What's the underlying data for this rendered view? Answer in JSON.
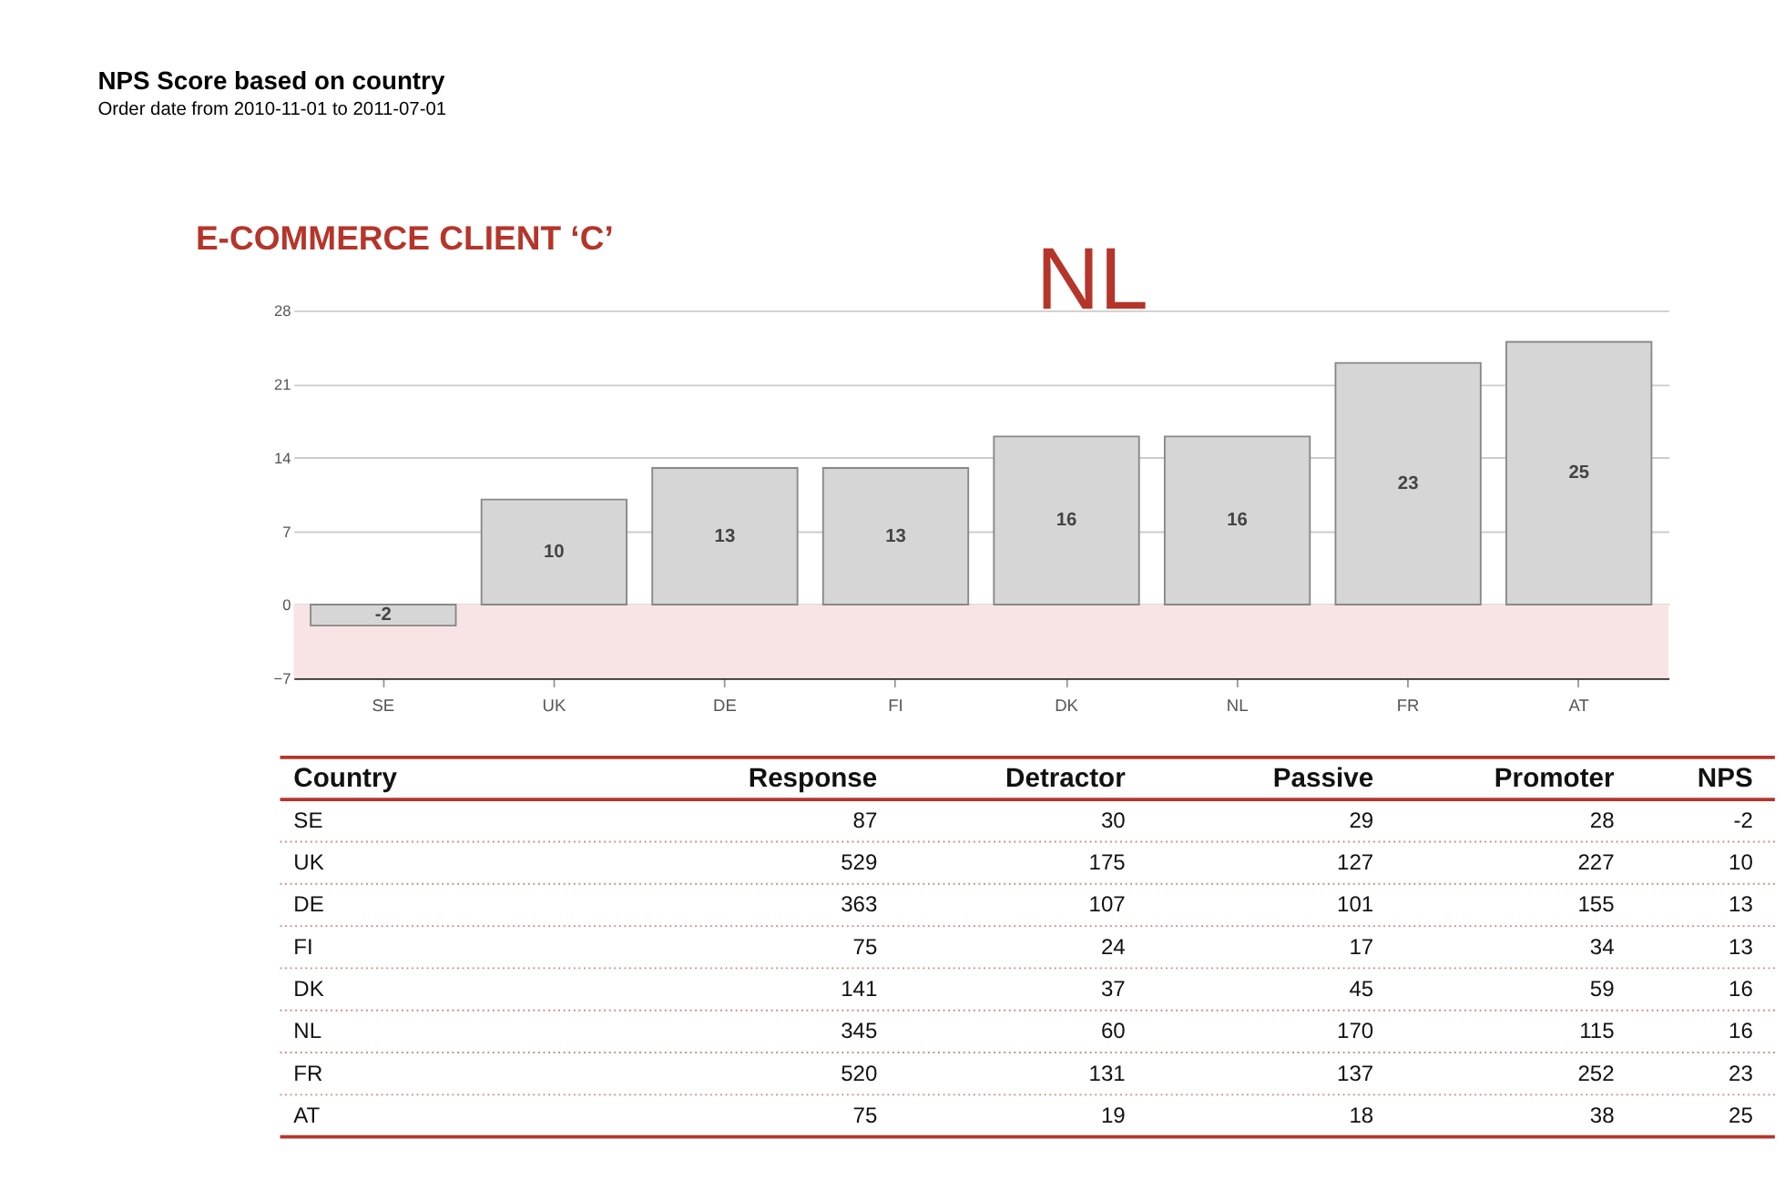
{
  "chart_data": [
    {
      "type": "bar",
      "title": "NPS Score based on country",
      "subtitle": "Order date from 2010-11-01 to 2011-07-01",
      "categories": [
        "SE",
        "UK",
        "DE",
        "FI",
        "DK",
        "NL",
        "FR",
        "AT"
      ],
      "values": [
        -2,
        10,
        13,
        13,
        16,
        16,
        23,
        25
      ],
      "color": "#d6d6d6",
      "ylim": [
        -7,
        28
      ],
      "yticks": [
        -7,
        0,
        7,
        14,
        21,
        28
      ],
      "grid": "y",
      "data_labels": true,
      "bands": [
        {
          "axis": "y",
          "from": -7,
          "to": 0,
          "color": "#f8e4e4"
        }
      ],
      "annotations": [
        "E-COMMERCE CLIENT ‘C’",
        "NL"
      ]
    },
    {
      "type": "other",
      "annotations": [
        "Country",
        "Response",
        "Detractor",
        "Passive",
        "Promoter",
        "NPS",
        "SE",
        "87",
        "30",
        "29",
        "28",
        "-2",
        "UK",
        "529",
        "175",
        "127",
        "227",
        "10",
        "DE",
        "363",
        "107",
        "101",
        "155",
        "13",
        "FI",
        "75",
        "24",
        "17",
        "34",
        "13",
        "DK",
        "141",
        "37",
        "45",
        "59",
        "16",
        "NL",
        "345",
        "60",
        "170",
        "115",
        "16",
        "FR",
        "520",
        "131",
        "137",
        "252",
        "23",
        "AT",
        "75",
        "19",
        "18",
        "38",
        "25"
      ]
    }
  ]
}
